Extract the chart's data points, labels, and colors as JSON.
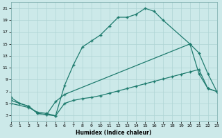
{
  "xlabel": "Humidex (Indice chaleur)",
  "background_color": "#cce9e9",
  "grid_color": "#afd4d4",
  "line_color": "#1e7b6e",
  "xlim": [
    0,
    23
  ],
  "ylim": [
    2,
    22
  ],
  "xticks": [
    0,
    1,
    2,
    3,
    4,
    5,
    6,
    7,
    8,
    9,
    10,
    11,
    12,
    13,
    14,
    15,
    16,
    17,
    18,
    19,
    20,
    21,
    22,
    23
  ],
  "yticks": [
    3,
    5,
    7,
    9,
    11,
    13,
    15,
    17,
    19,
    21
  ],
  "line1_x": [
    0,
    1,
    2,
    3,
    4,
    5,
    6,
    7,
    8,
    9,
    10,
    11,
    12,
    13,
    14,
    15,
    16,
    17,
    20,
    21,
    22,
    23
  ],
  "line1_y": [
    6,
    5,
    4.5,
    3.3,
    3.1,
    2.9,
    8,
    11.5,
    14.5,
    15.5,
    16.5,
    18,
    19.5,
    19.5,
    20,
    21,
    20.5,
    19,
    15,
    10,
    7.5,
    7
  ],
  "line2_x": [
    0,
    2,
    3,
    4,
    5,
    6,
    20,
    21,
    22,
    23
  ],
  "line2_y": [
    5.5,
    4.5,
    3.3,
    3.1,
    5.3,
    6.5,
    15,
    13.5,
    10,
    7
  ],
  "line3_x": [
    0,
    2,
    3,
    4,
    5,
    6,
    7,
    8,
    9,
    10,
    11,
    12,
    13,
    14,
    15,
    16,
    17,
    18,
    19,
    20,
    21,
    22,
    23
  ],
  "line3_y": [
    5,
    4.3,
    3.5,
    3.3,
    2.9,
    5,
    5.5,
    5.8,
    6.0,
    6.3,
    6.7,
    7.1,
    7.5,
    7.9,
    8.3,
    8.7,
    9.1,
    9.5,
    9.9,
    10.3,
    10.7,
    7.5,
    7
  ]
}
